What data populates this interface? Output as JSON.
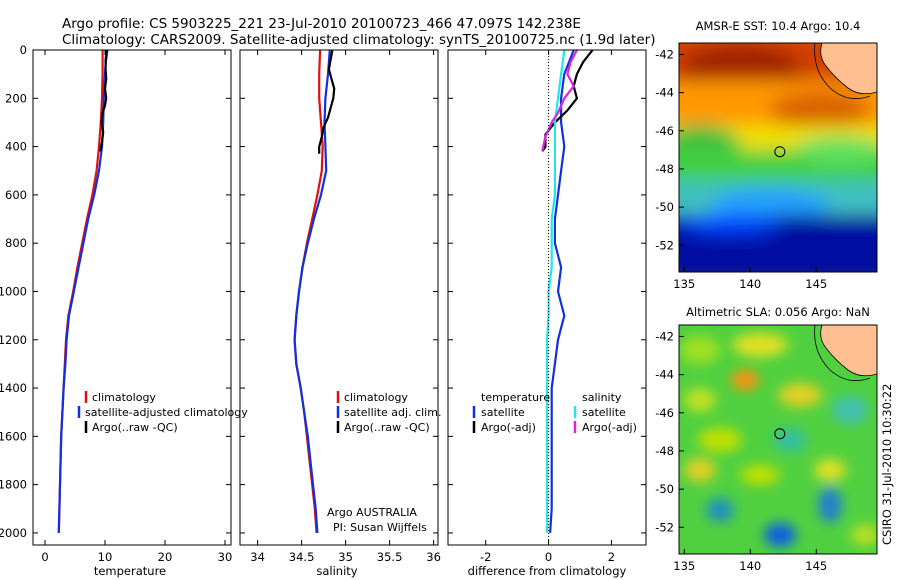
{
  "header": {
    "line1": "Argo profile: CS 5903225_221 23-Jul-2010 20100723_466 47.097S 142.238E",
    "line2": "Climatology: CARS2009. Satellite-adjusted climatology: synTS_20100725.nc (1.9d later)"
  },
  "colors": {
    "climatology": "#e01010",
    "satellite": "#1030e0",
    "argo": "#000000",
    "salinity_satellite": "#20e8e8",
    "salinity_argo": "#e020e0"
  },
  "chart_data": [
    {
      "id": "temperature",
      "type": "line",
      "xlabel": "temperature",
      "ylabel": "",
      "xlim": [
        -2,
        31
      ],
      "ylim": [
        2050,
        0
      ],
      "xticks": [
        0,
        10,
        20,
        30
      ],
      "yticks": [
        0,
        200,
        400,
        600,
        800,
        1000,
        1200,
        1400,
        1600,
        1800,
        2000
      ],
      "legend": [
        "climatology",
        "satellite-adjusted climatology",
        "Argo(..raw -QC)"
      ],
      "series": [
        {
          "name": "climatology",
          "color": "#e01010",
          "points": [
            [
              9.6,
              0
            ],
            [
              9.6,
              100
            ],
            [
              9.5,
              200
            ],
            [
              9.3,
              300
            ],
            [
              9.0,
              400
            ],
            [
              8.6,
              500
            ],
            [
              7.9,
              600
            ],
            [
              7.0,
              700
            ],
            [
              6.2,
              800
            ],
            [
              5.4,
              900
            ],
            [
              4.7,
              1000
            ],
            [
              3.9,
              1100
            ],
            [
              3.5,
              1200
            ],
            [
              3.3,
              1300
            ],
            [
              3.1,
              1400
            ],
            [
              2.9,
              1500
            ],
            [
              2.7,
              1600
            ],
            [
              2.6,
              1700
            ],
            [
              2.5,
              1800
            ],
            [
              2.4,
              1900
            ],
            [
              2.3,
              2000
            ]
          ]
        },
        {
          "name": "satellite-adjusted climatology",
          "color": "#1030e0",
          "points": [
            [
              10.4,
              0
            ],
            [
              10.1,
              60
            ],
            [
              10.0,
              100
            ],
            [
              9.8,
              200
            ],
            [
              9.7,
              300
            ],
            [
              9.5,
              400
            ],
            [
              9.0,
              500
            ],
            [
              8.2,
              600
            ],
            [
              7.2,
              700
            ],
            [
              6.4,
              800
            ],
            [
              5.6,
              900
            ],
            [
              4.8,
              1000
            ],
            [
              4.0,
              1100
            ],
            [
              3.6,
              1200
            ],
            [
              3.4,
              1300
            ],
            [
              3.1,
              1400
            ],
            [
              2.9,
              1500
            ],
            [
              2.7,
              1600
            ],
            [
              2.6,
              1700
            ],
            [
              2.5,
              1800
            ],
            [
              2.4,
              1900
            ],
            [
              2.3,
              2000
            ]
          ]
        },
        {
          "name": "Argo(..raw -QC)",
          "color": "#000000",
          "points": [
            [
              10.3,
              0
            ],
            [
              10.1,
              40
            ],
            [
              10.1,
              80
            ],
            [
              10.2,
              120
            ],
            [
              10.0,
              160
            ],
            [
              10.2,
              200
            ],
            [
              10.0,
              230
            ],
            [
              9.6,
              260
            ],
            [
              9.4,
              300
            ],
            [
              9.7,
              340
            ],
            [
              9.5,
              380
            ],
            [
              9.2,
              420
            ]
          ]
        }
      ]
    },
    {
      "id": "salinity",
      "type": "line",
      "xlabel": "salinity",
      "ylabel": "",
      "xlim": [
        33.8,
        36.05
      ],
      "ylim": [
        2050,
        0
      ],
      "xticks": [
        34,
        34.5,
        35,
        35.5,
        36
      ],
      "legend": [
        "climatology",
        "satellite adj. clim.",
        "Argo(..raw -QC)"
      ],
      "series": [
        {
          "name": "climatology",
          "color": "#e01010",
          "points": [
            [
              34.71,
              0
            ],
            [
              34.7,
              100
            ],
            [
              34.7,
              200
            ],
            [
              34.72,
              300
            ],
            [
              34.74,
              400
            ],
            [
              34.73,
              500
            ],
            [
              34.68,
              600
            ],
            [
              34.62,
              700
            ],
            [
              34.56,
              800
            ],
            [
              34.51,
              900
            ],
            [
              34.47,
              1000
            ],
            [
              34.44,
              1100
            ],
            [
              34.42,
              1200
            ],
            [
              34.44,
              1300
            ],
            [
              34.49,
              1400
            ],
            [
              34.53,
              1500
            ],
            [
              34.56,
              1600
            ],
            [
              34.59,
              1700
            ],
            [
              34.62,
              1800
            ],
            [
              34.65,
              1900
            ],
            [
              34.67,
              2000
            ]
          ]
        },
        {
          "name": "satellite adj. clim.",
          "color": "#1030e0",
          "points": [
            [
              34.82,
              0
            ],
            [
              34.8,
              100
            ],
            [
              34.77,
              200
            ],
            [
              34.76,
              300
            ],
            [
              34.77,
              400
            ],
            [
              34.78,
              500
            ],
            [
              34.72,
              600
            ],
            [
              34.64,
              700
            ],
            [
              34.57,
              800
            ],
            [
              34.51,
              900
            ],
            [
              34.47,
              1000
            ],
            [
              34.44,
              1100
            ],
            [
              34.42,
              1200
            ],
            [
              34.44,
              1300
            ],
            [
              34.49,
              1400
            ],
            [
              34.53,
              1500
            ],
            [
              34.57,
              1600
            ],
            [
              34.6,
              1700
            ],
            [
              34.63,
              1800
            ],
            [
              34.66,
              1900
            ],
            [
              34.68,
              2000
            ]
          ]
        },
        {
          "name": "Argo(..raw -QC)",
          "color": "#000000",
          "points": [
            [
              34.85,
              0
            ],
            [
              34.83,
              40
            ],
            [
              34.81,
              80
            ],
            [
              34.84,
              120
            ],
            [
              34.87,
              160
            ],
            [
              34.86,
              200
            ],
            [
              34.83,
              240
            ],
            [
              34.8,
              280
            ],
            [
              34.75,
              320
            ],
            [
              34.73,
              360
            ],
            [
              34.7,
              400
            ],
            [
              34.7,
              430
            ]
          ]
        }
      ]
    },
    {
      "id": "difference",
      "type": "line",
      "xlabel": "difference from climatology",
      "ylabel": "",
      "xlim": [
        -3.2,
        3.1
      ],
      "ylim": [
        2050,
        0
      ],
      "xticks": [
        -2,
        0,
        2
      ],
      "legend": [
        "temperature",
        "satellite",
        "Argo(-adj)",
        "salinity",
        "satellite",
        "Argo(-adj)"
      ],
      "series": [
        {
          "name": "temperature satellite",
          "color": "#1030e0",
          "points": [
            [
              0.8,
              0
            ],
            [
              0.5,
              100
            ],
            [
              0.4,
              200
            ],
            [
              0.4,
              300
            ],
            [
              0.5,
              400
            ],
            [
              0.4,
              500
            ],
            [
              0.3,
              600
            ],
            [
              0.2,
              700
            ],
            [
              0.2,
              800
            ],
            [
              0.4,
              900
            ],
            [
              0.3,
              1000
            ],
            [
              0.5,
              1100
            ],
            [
              0.3,
              1200
            ],
            [
              0.2,
              1300
            ],
            [
              0.1,
              1400
            ],
            [
              0.1,
              1500
            ],
            [
              0.1,
              1600
            ],
            [
              0.1,
              1700
            ],
            [
              0.1,
              1800
            ],
            [
              0.1,
              1900
            ],
            [
              0.05,
              2000
            ]
          ]
        },
        {
          "name": "temperature Argo(-adj)",
          "color": "#000000",
          "points": [
            [
              1.4,
              0
            ],
            [
              1.1,
              50
            ],
            [
              0.9,
              100
            ],
            [
              0.8,
              150
            ],
            [
              0.9,
              200
            ],
            [
              0.6,
              250
            ],
            [
              0.2,
              300
            ],
            [
              -0.1,
              350
            ],
            [
              -0.1,
              400
            ],
            [
              -0.2,
              420
            ]
          ]
        },
        {
          "name": "salinity satellite",
          "color": "#20e8e8",
          "points": [
            [
              0.5,
              0
            ],
            [
              0.4,
              100
            ],
            [
              0.3,
              200
            ],
            [
              0.2,
              300
            ],
            [
              0.2,
              400
            ],
            [
              0.2,
              500
            ],
            [
              0.2,
              600
            ],
            [
              0.1,
              700
            ],
            [
              0.1,
              800
            ],
            [
              0.1,
              900
            ],
            [
              0.0,
              1000
            ],
            [
              0.0,
              1100
            ],
            [
              -0.05,
              1200
            ],
            [
              -0.05,
              1300
            ],
            [
              -0.05,
              1400
            ],
            [
              -0.05,
              1500
            ],
            [
              -0.05,
              1600
            ],
            [
              -0.05,
              1700
            ],
            [
              -0.05,
              1800
            ],
            [
              -0.05,
              1900
            ],
            [
              -0.05,
              2000
            ]
          ]
        },
        {
          "name": "salinity Argo(-adj)",
          "color": "#e020e0",
          "points": [
            [
              0.9,
              0
            ],
            [
              0.7,
              50
            ],
            [
              0.6,
              100
            ],
            [
              0.8,
              150
            ],
            [
              0.5,
              200
            ],
            [
              0.3,
              260
            ],
            [
              0.1,
              300
            ],
            [
              -0.1,
              360
            ],
            [
              -0.2,
              420
            ]
          ]
        }
      ]
    },
    {
      "id": "sst-map",
      "type": "heatmap",
      "title": "AMSR-E SST: 10.4  Argo: 10.4",
      "xlim": [
        134.6,
        149.6
      ],
      "ylim": [
        -53.4,
        -41.4
      ],
      "xticks": [
        135,
        140,
        145
      ],
      "yticks": [
        -42,
        -44,
        -46,
        -48,
        -50,
        -52
      ],
      "marker": {
        "lon": 142.238,
        "lat": -47.097
      }
    },
    {
      "id": "sla-map",
      "type": "heatmap",
      "title": "Altimetric SLA: 0.056  Argo: NaN",
      "xlim": [
        134.6,
        149.6
      ],
      "ylim": [
        -53.4,
        -41.4
      ],
      "xticks": [
        135,
        140,
        145
      ],
      "yticks": [
        -42,
        -44,
        -46,
        -48,
        -50,
        -52
      ],
      "marker": {
        "lon": 142.238,
        "lat": -47.097
      }
    }
  ],
  "annotations": {
    "argo_country": "Argo AUSTRALIA",
    "pi": "PI: Susan Wijffels",
    "footer": "CSIRO 31-Jul-2010 10:30:22"
  }
}
